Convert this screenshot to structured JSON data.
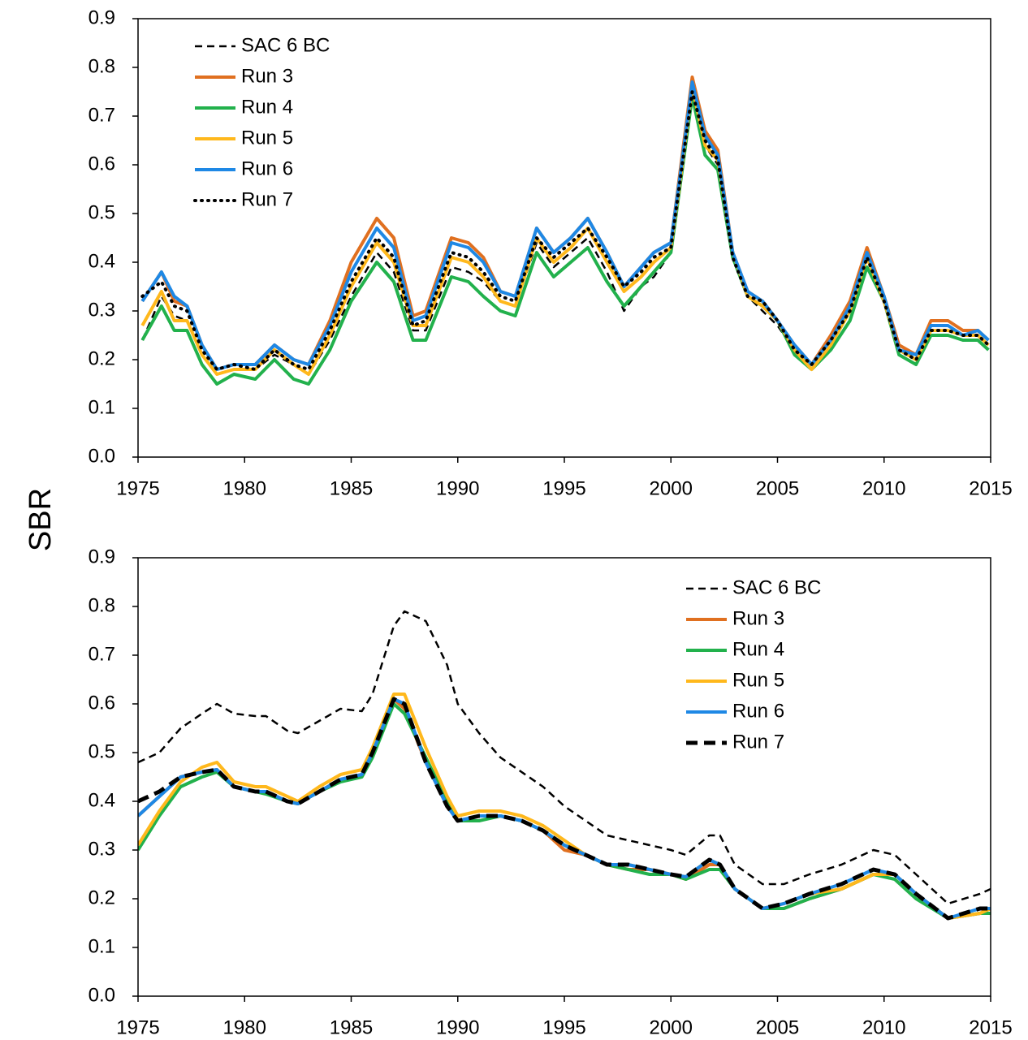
{
  "y_label": "SBR",
  "chart_data": [
    {
      "type": "line",
      "legend": "upper left",
      "x": [
        1975.2,
        1976.1,
        1976.7,
        1977.3,
        1978,
        1978.7,
        1979.5,
        1980.5,
        1981.4,
        1982.3,
        1983,
        1984,
        1985,
        1986.2,
        1987,
        1987.9,
        1988.5,
        1989.7,
        1990.5,
        1991.2,
        1992,
        1992.7,
        1993.7,
        1994.5,
        1995.3,
        1996.1,
        1997,
        1997.8,
        1998.6,
        1999.2,
        2000,
        2000.5,
        2001,
        2001.6,
        2002.2,
        2002.9,
        2003.6,
        2004.3,
        2005,
        2005.8,
        2006.6,
        2007.5,
        2008.4,
        2009.2,
        2010,
        2010.7,
        2011.5,
        2012.2,
        2013,
        2013.7,
        2014.4,
        2014.9
      ],
      "xlim": [
        1975,
        2015
      ],
      "xticks": [
        1975,
        1980,
        1985,
        1990,
        1995,
        2000,
        2005,
        2010,
        2015
      ],
      "ylim": [
        0,
        0.9
      ],
      "yticks": [
        {
          "value": 0,
          "label": "0.0"
        },
        0.1,
        0.2,
        0.3,
        0.4,
        0.5,
        0.6,
        0.7,
        0.8,
        0.9
      ],
      "series": [
        {
          "name": "SAC 6 BC",
          "color": "#000000",
          "style": "dashed",
          "values": [
            0.24,
            0.33,
            0.29,
            0.28,
            0.21,
            0.17,
            0.18,
            0.18,
            0.21,
            0.19,
            0.17,
            0.24,
            0.33,
            0.42,
            0.38,
            0.26,
            0.26,
            0.39,
            0.38,
            0.36,
            0.32,
            0.31,
            0.44,
            0.39,
            0.42,
            0.45,
            0.38,
            0.3,
            0.35,
            0.37,
            0.42,
            0.58,
            0.75,
            0.64,
            0.6,
            0.41,
            0.33,
            0.3,
            0.27,
            0.22,
            0.19,
            0.24,
            0.3,
            0.41,
            0.32,
            0.22,
            0.2,
            0.26,
            0.26,
            0.25,
            0.25,
            0.23
          ]
        },
        {
          "name": "Run 3",
          "color": "#e07020",
          "style": "solid",
          "values": [
            0.32,
            0.38,
            0.32,
            0.31,
            0.23,
            0.18,
            0.19,
            0.19,
            0.23,
            0.2,
            0.19,
            0.28,
            0.4,
            0.49,
            0.45,
            0.29,
            0.3,
            0.45,
            0.44,
            0.41,
            0.34,
            0.33,
            0.47,
            0.42,
            0.45,
            0.49,
            0.42,
            0.35,
            0.39,
            0.42,
            0.44,
            0.61,
            0.78,
            0.67,
            0.63,
            0.42,
            0.34,
            0.32,
            0.28,
            0.23,
            0.19,
            0.25,
            0.32,
            0.43,
            0.33,
            0.23,
            0.21,
            0.28,
            0.28,
            0.26,
            0.26,
            0.24
          ]
        },
        {
          "name": "Run 4",
          "color": "#22b14c",
          "style": "solid",
          "values": [
            0.24,
            0.31,
            0.26,
            0.26,
            0.19,
            0.15,
            0.17,
            0.16,
            0.2,
            0.16,
            0.15,
            0.22,
            0.32,
            0.4,
            0.36,
            0.24,
            0.24,
            0.37,
            0.36,
            0.33,
            0.3,
            0.29,
            0.42,
            0.37,
            0.4,
            0.43,
            0.36,
            0.31,
            0.35,
            0.38,
            0.42,
            0.58,
            0.74,
            0.62,
            0.59,
            0.41,
            0.33,
            0.31,
            0.28,
            0.21,
            0.18,
            0.22,
            0.28,
            0.39,
            0.32,
            0.21,
            0.19,
            0.25,
            0.25,
            0.24,
            0.24,
            0.22
          ]
        },
        {
          "name": "Run 5",
          "color": "#ffb81c",
          "style": "solid",
          "values": [
            0.27,
            0.34,
            0.28,
            0.28,
            0.21,
            0.17,
            0.18,
            0.18,
            0.22,
            0.19,
            0.17,
            0.25,
            0.35,
            0.44,
            0.4,
            0.27,
            0.27,
            0.41,
            0.4,
            0.37,
            0.32,
            0.31,
            0.45,
            0.4,
            0.43,
            0.47,
            0.4,
            0.34,
            0.37,
            0.4,
            0.43,
            0.59,
            0.76,
            0.64,
            0.61,
            0.42,
            0.33,
            0.31,
            0.28,
            0.22,
            0.18,
            0.23,
            0.3,
            0.41,
            0.32,
            0.22,
            0.2,
            0.26,
            0.26,
            0.25,
            0.25,
            0.23
          ]
        },
        {
          "name": "Run 6",
          "color": "#1e88e5",
          "style": "solid",
          "values": [
            0.32,
            0.38,
            0.33,
            0.31,
            0.23,
            0.18,
            0.19,
            0.19,
            0.23,
            0.2,
            0.19,
            0.27,
            0.38,
            0.47,
            0.43,
            0.28,
            0.29,
            0.44,
            0.43,
            0.4,
            0.34,
            0.33,
            0.47,
            0.42,
            0.45,
            0.49,
            0.42,
            0.35,
            0.39,
            0.42,
            0.44,
            0.6,
            0.77,
            0.66,
            0.62,
            0.42,
            0.34,
            0.32,
            0.28,
            0.23,
            0.19,
            0.24,
            0.31,
            0.42,
            0.33,
            0.22,
            0.21,
            0.27,
            0.27,
            0.25,
            0.26,
            0.24
          ]
        },
        {
          "name": "Run 7",
          "color": "#000000",
          "style": "dotted",
          "values": [
            0.33,
            0.36,
            0.31,
            0.3,
            0.22,
            0.18,
            0.19,
            0.18,
            0.22,
            0.19,
            0.18,
            0.26,
            0.36,
            0.45,
            0.41,
            0.27,
            0.28,
            0.42,
            0.41,
            0.38,
            0.33,
            0.32,
            0.45,
            0.41,
            0.44,
            0.47,
            0.41,
            0.35,
            0.38,
            0.41,
            0.43,
            0.59,
            0.75,
            0.65,
            0.61,
            0.41,
            0.33,
            0.32,
            0.28,
            0.22,
            0.19,
            0.24,
            0.3,
            0.41,
            0.32,
            0.22,
            0.2,
            0.26,
            0.26,
            0.25,
            0.25,
            0.23
          ]
        }
      ]
    },
    {
      "type": "line",
      "legend": "upper right",
      "x": [
        1975,
        1976,
        1977,
        1978,
        1978.7,
        1979.5,
        1980.5,
        1981,
        1982,
        1982.5,
        1983.5,
        1984.5,
        1985.5,
        1986,
        1987,
        1987.5,
        1988.5,
        1989.5,
        1990,
        1991,
        1992,
        1993,
        1994,
        1995,
        1996,
        1997,
        1998,
        1999,
        2000,
        2000.7,
        2001.8,
        2002.3,
        2003,
        2004.3,
        2005.3,
        2006.5,
        2008,
        2009.5,
        2010.5,
        2011.5,
        2013,
        2014.5,
        2015
      ],
      "xlim": [
        1975,
        2015
      ],
      "xticks": [
        1975,
        1980,
        1985,
        1990,
        1995,
        2000,
        2005,
        2010,
        2015
      ],
      "ylim": [
        0,
        0.9
      ],
      "yticks": [
        {
          "value": 0,
          "label": "0.0"
        },
        0.1,
        0.2,
        0.3,
        0.4,
        0.5,
        0.6,
        0.7,
        0.8,
        0.9
      ],
      "series": [
        {
          "name": "SAC 6 BC",
          "color": "#000000",
          "style": "dashed",
          "values": [
            0.48,
            0.5,
            0.55,
            0.58,
            0.6,
            0.58,
            0.575,
            0.575,
            0.545,
            0.54,
            0.565,
            0.59,
            0.585,
            0.62,
            0.76,
            0.79,
            0.77,
            0.68,
            0.6,
            0.54,
            0.49,
            0.46,
            0.43,
            0.39,
            0.36,
            0.33,
            0.32,
            0.31,
            0.3,
            0.29,
            0.33,
            0.33,
            0.27,
            0.23,
            0.23,
            0.25,
            0.27,
            0.3,
            0.29,
            0.25,
            0.19,
            0.21,
            0.22
          ]
        },
        {
          "name": "Run 3",
          "color": "#e07020",
          "style": "solid",
          "values": [
            0.37,
            0.41,
            0.45,
            0.46,
            0.465,
            0.43,
            0.42,
            0.42,
            0.4,
            0.395,
            0.42,
            0.445,
            0.455,
            0.5,
            0.61,
            0.59,
            0.48,
            0.39,
            0.36,
            0.37,
            0.37,
            0.36,
            0.34,
            0.3,
            0.29,
            0.27,
            0.26,
            0.26,
            0.25,
            0.24,
            0.27,
            0.27,
            0.22,
            0.18,
            0.18,
            0.2,
            0.22,
            0.25,
            0.25,
            0.21,
            0.16,
            0.17,
            0.18
          ]
        },
        {
          "name": "Run 4",
          "color": "#22b14c",
          "style": "solid",
          "values": [
            0.3,
            0.37,
            0.43,
            0.45,
            0.46,
            0.43,
            0.42,
            0.415,
            0.4,
            0.395,
            0.42,
            0.44,
            0.45,
            0.49,
            0.6,
            0.58,
            0.49,
            0.4,
            0.36,
            0.36,
            0.37,
            0.36,
            0.34,
            0.31,
            0.29,
            0.27,
            0.26,
            0.25,
            0.25,
            0.24,
            0.26,
            0.26,
            0.22,
            0.18,
            0.18,
            0.2,
            0.22,
            0.25,
            0.24,
            0.2,
            0.16,
            0.17,
            0.17
          ]
        },
        {
          "name": "Run 5",
          "color": "#ffb81c",
          "style": "solid",
          "values": [
            0.31,
            0.38,
            0.44,
            0.47,
            0.48,
            0.44,
            0.43,
            0.43,
            0.41,
            0.4,
            0.43,
            0.455,
            0.465,
            0.51,
            0.62,
            0.62,
            0.51,
            0.41,
            0.37,
            0.38,
            0.38,
            0.37,
            0.35,
            0.32,
            0.29,
            0.27,
            0.27,
            0.26,
            0.25,
            0.245,
            0.28,
            0.27,
            0.22,
            0.18,
            0.19,
            0.21,
            0.22,
            0.25,
            0.25,
            0.21,
            0.16,
            0.17,
            0.18
          ]
        },
        {
          "name": "Run 6",
          "color": "#1e88e5",
          "style": "solid",
          "values": [
            0.37,
            0.41,
            0.45,
            0.46,
            0.465,
            0.43,
            0.42,
            0.42,
            0.4,
            0.395,
            0.42,
            0.445,
            0.455,
            0.5,
            0.61,
            0.6,
            0.48,
            0.39,
            0.36,
            0.37,
            0.37,
            0.36,
            0.34,
            0.31,
            0.29,
            0.27,
            0.27,
            0.26,
            0.25,
            0.245,
            0.28,
            0.27,
            0.22,
            0.18,
            0.19,
            0.21,
            0.23,
            0.26,
            0.25,
            0.21,
            0.16,
            0.18,
            0.18
          ]
        },
        {
          "name": "Run 7",
          "color": "#000000",
          "style": "bold-dashed",
          "values": [
            0.4,
            0.42,
            0.45,
            0.46,
            0.465,
            0.43,
            0.42,
            0.42,
            0.4,
            0.395,
            0.42,
            0.445,
            0.455,
            0.5,
            0.61,
            0.6,
            0.48,
            0.39,
            0.36,
            0.37,
            0.37,
            0.36,
            0.34,
            0.31,
            0.29,
            0.27,
            0.27,
            0.26,
            0.25,
            0.245,
            0.28,
            0.27,
            0.22,
            0.18,
            0.19,
            0.21,
            0.23,
            0.26,
            0.25,
            0.21,
            0.16,
            0.18,
            0.18
          ]
        }
      ]
    }
  ]
}
